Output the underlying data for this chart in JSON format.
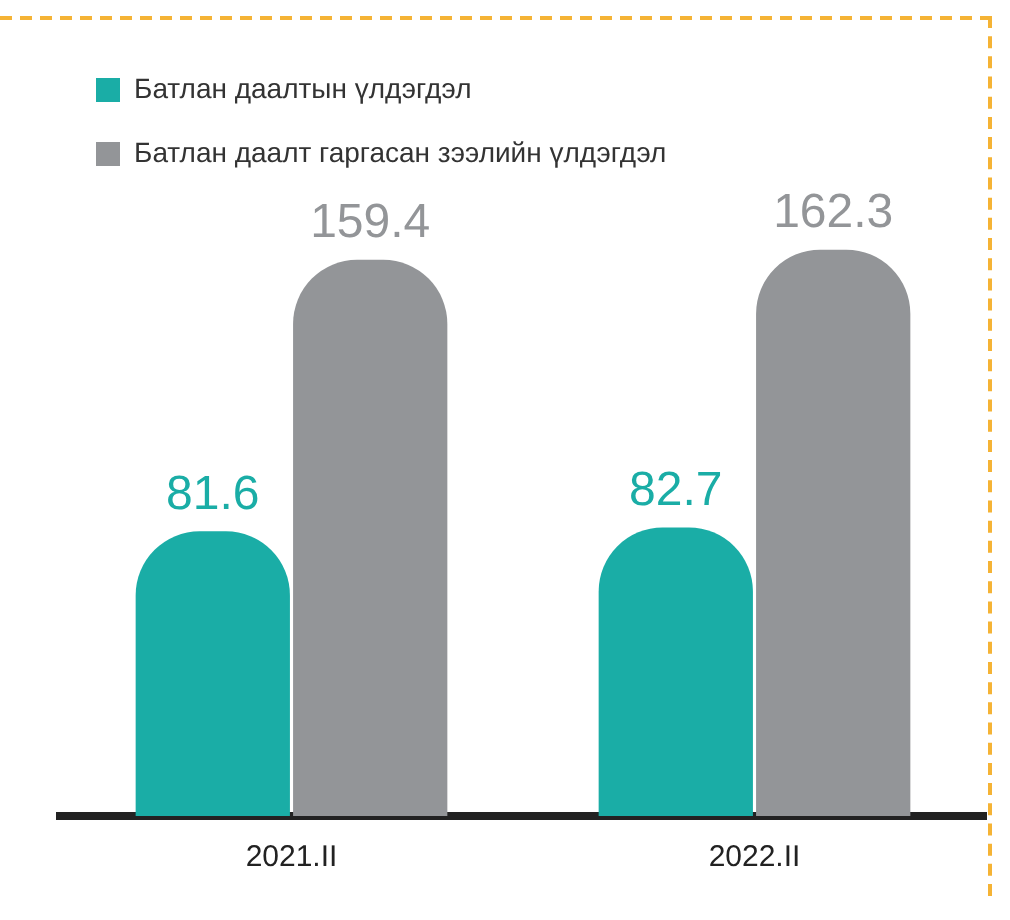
{
  "chart_data": {
    "type": "bar",
    "categories": [
      "2021.II",
      "2022.II"
    ],
    "series": [
      {
        "name": "Батлан даалтын үлдэгдэл",
        "color": "#1aada6",
        "values": [
          81.6,
          82.7
        ]
      },
      {
        "name": "Батлан даалт гаргасан зээлийн үлдэгдэл",
        "color": "#939598",
        "values": [
          159.4,
          162.3
        ]
      }
    ],
    "data_labels": true,
    "legend": "top left",
    "grid": false
  }
}
